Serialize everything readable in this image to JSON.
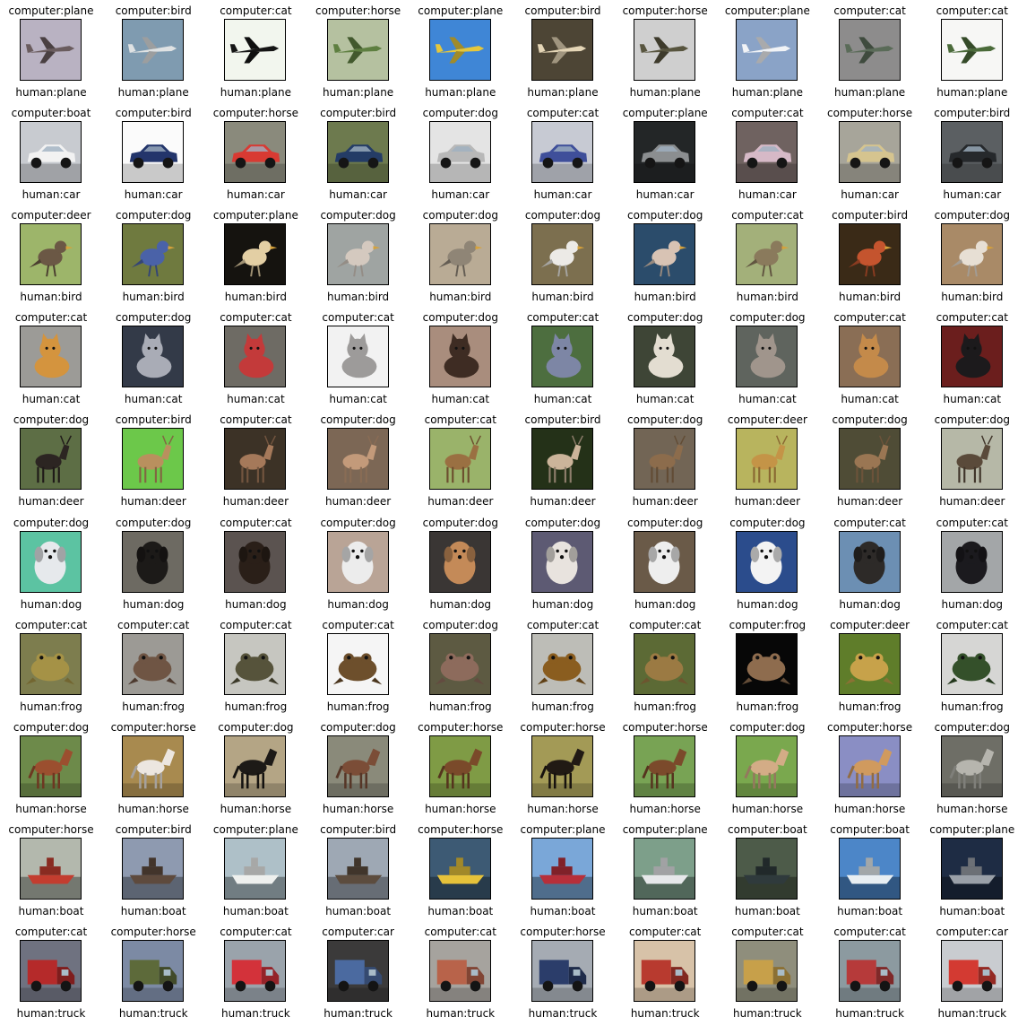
{
  "grid": {
    "rows": [
      {
        "label": "plane",
        "cells": [
          {
            "computer": "computer:plane",
            "human": "human:plane",
            "bg": "#b9b2c2",
            "fg": "#6a5c5e",
            "shape": "plane"
          },
          {
            "computer": "computer:bird",
            "human": "human:plane",
            "bg": "#7f9bb0",
            "fg": "#dfe2e3",
            "shape": "plane"
          },
          {
            "computer": "computer:cat",
            "human": "human:plane",
            "bg": "#f2f6ee",
            "fg": "#151515",
            "shape": "plane"
          },
          {
            "computer": "computer:horse",
            "human": "human:plane",
            "bg": "#b5c1a0",
            "fg": "#5e7f40",
            "shape": "plane"
          },
          {
            "computer": "computer:plane",
            "human": "human:plane",
            "bg": "#3f86d6",
            "fg": "#e5c73c",
            "shape": "plane"
          },
          {
            "computer": "computer:bird",
            "human": "human:plane",
            "bg": "#4d4535",
            "fg": "#e4d5b6",
            "shape": "plane"
          },
          {
            "computer": "computer:horse",
            "human": "human:plane",
            "bg": "#cfcfcf",
            "fg": "#58553f",
            "shape": "plane"
          },
          {
            "computer": "computer:plane",
            "human": "human:plane",
            "bg": "#8aa3c7",
            "fg": "#f1f3f6",
            "shape": "plane"
          },
          {
            "computer": "computer:cat",
            "human": "human:plane",
            "bg": "#8d8c8c",
            "fg": "#5a6b58",
            "shape": "plane"
          },
          {
            "computer": "computer:cat",
            "human": "human:plane",
            "bg": "#f7f7f5",
            "fg": "#4b6b3a",
            "shape": "plane"
          }
        ]
      },
      {
        "label": "car",
        "cells": [
          {
            "computer": "computer:boat",
            "human": "human:car",
            "bg": "#c8cbd0",
            "fg": "#f2f2f2",
            "shape": "car"
          },
          {
            "computer": "computer:bird",
            "human": "human:car",
            "bg": "#fbfbfb",
            "fg": "#23356b",
            "shape": "car"
          },
          {
            "computer": "computer:horse",
            "human": "human:car",
            "bg": "#8a8a7c",
            "fg": "#d83a33",
            "shape": "car"
          },
          {
            "computer": "computer:bird",
            "human": "human:car",
            "bg": "#6d7a4e",
            "fg": "#243c66",
            "shape": "car"
          },
          {
            "computer": "computer:dog",
            "human": "human:car",
            "bg": "#e4e4e4",
            "fg": "#b8b8b8",
            "shape": "car"
          },
          {
            "computer": "computer:cat",
            "human": "human:car",
            "bg": "#c7cad3",
            "fg": "#3f4f9a",
            "shape": "car"
          },
          {
            "computer": "computer:plane",
            "human": "human:car",
            "bg": "#232627",
            "fg": "#8b8e90",
            "shape": "car"
          },
          {
            "computer": "computer:cat",
            "human": "human:car",
            "bg": "#6f6260",
            "fg": "#d6b9c7",
            "shape": "car"
          },
          {
            "computer": "computer:horse",
            "human": "human:car",
            "bg": "#a7a59a",
            "fg": "#d5c48f",
            "shape": "car"
          },
          {
            "computer": "computer:bird",
            "human": "human:car",
            "bg": "#5b5f62",
            "fg": "#26292c",
            "shape": "car"
          }
        ]
      },
      {
        "label": "bird",
        "cells": [
          {
            "computer": "computer:deer",
            "human": "human:bird",
            "bg": "#9db56a",
            "fg": "#6b5845",
            "shape": "bird"
          },
          {
            "computer": "computer:dog",
            "human": "human:bird",
            "bg": "#6f7a3f",
            "fg": "#4a62a8",
            "shape": "bird"
          },
          {
            "computer": "computer:plane",
            "human": "human:bird",
            "bg": "#15130f",
            "fg": "#e3cfa4",
            "shape": "bird"
          },
          {
            "computer": "computer:dog",
            "human": "human:bird",
            "bg": "#9fa4a2",
            "fg": "#d4c9bf",
            "shape": "bird"
          },
          {
            "computer": "computer:dog",
            "human": "human:bird",
            "bg": "#b9ab95",
            "fg": "#8f8576",
            "shape": "bird"
          },
          {
            "computer": "computer:dog",
            "human": "human:bird",
            "bg": "#7c6f4f",
            "fg": "#eceae6",
            "shape": "bird"
          },
          {
            "computer": "computer:dog",
            "human": "human:bird",
            "bg": "#2b4c6b",
            "fg": "#d8c3b4",
            "shape": "bird"
          },
          {
            "computer": "computer:cat",
            "human": "human:bird",
            "bg": "#a3b07a",
            "fg": "#8a7a5c",
            "shape": "bird"
          },
          {
            "computer": "computer:bird",
            "human": "human:bird",
            "bg": "#3a2a17",
            "fg": "#c4542e",
            "shape": "bird"
          },
          {
            "computer": "computer:dog",
            "human": "human:bird",
            "bg": "#a98a67",
            "fg": "#e7dfd4",
            "shape": "bird"
          }
        ]
      },
      {
        "label": "cat",
        "cells": [
          {
            "computer": "computer:cat",
            "human": "human:cat",
            "bg": "#9c9b97",
            "fg": "#d4943e",
            "shape": "cat"
          },
          {
            "computer": "computer:dog",
            "human": "human:cat",
            "bg": "#333a48",
            "fg": "#a9acb6",
            "shape": "cat"
          },
          {
            "computer": "computer:cat",
            "human": "human:cat",
            "bg": "#6e6b64",
            "fg": "#c33a3a",
            "shape": "cat"
          },
          {
            "computer": "computer:cat",
            "human": "human:cat",
            "bg": "#f2f2f2",
            "fg": "#9d9b9a",
            "shape": "cat"
          },
          {
            "computer": "computer:dog",
            "human": "human:cat",
            "bg": "#a98d7d",
            "fg": "#3e2c23",
            "shape": "cat"
          },
          {
            "computer": "computer:cat",
            "human": "human:cat",
            "bg": "#4d6e3f",
            "fg": "#7d86a5",
            "shape": "cat"
          },
          {
            "computer": "computer:dog",
            "human": "human:cat",
            "bg": "#3e4536",
            "fg": "#e3ddd1",
            "shape": "cat"
          },
          {
            "computer": "computer:dog",
            "human": "human:cat",
            "bg": "#5f645e",
            "fg": "#a0958c",
            "shape": "cat"
          },
          {
            "computer": "computer:cat",
            "human": "human:cat",
            "bg": "#8a6e55",
            "fg": "#c48a4a",
            "shape": "cat"
          },
          {
            "computer": "computer:cat",
            "human": "human:cat",
            "bg": "#6b1e1d",
            "fg": "#1c1a1c",
            "shape": "cat"
          }
        ]
      },
      {
        "label": "deer",
        "cells": [
          {
            "computer": "computer:dog",
            "human": "human:deer",
            "bg": "#5d6e45",
            "fg": "#2c2522",
            "shape": "deer"
          },
          {
            "computer": "computer:bird",
            "human": "human:deer",
            "bg": "#6cc84a",
            "fg": "#b9905e",
            "shape": "deer"
          },
          {
            "computer": "computer:cat",
            "human": "human:deer",
            "bg": "#3c3226",
            "fg": "#a5795a",
            "shape": "deer"
          },
          {
            "computer": "computer:dog",
            "human": "human:deer",
            "bg": "#7c6755",
            "fg": "#c39a7a",
            "shape": "deer"
          },
          {
            "computer": "computer:cat",
            "human": "human:deer",
            "bg": "#9ab36a",
            "fg": "#9a7042",
            "shape": "deer"
          },
          {
            "computer": "computer:bird",
            "human": "human:deer",
            "bg": "#243118",
            "fg": "#cbb49a",
            "shape": "deer"
          },
          {
            "computer": "computer:dog",
            "human": "human:deer",
            "bg": "#726555",
            "fg": "#8c6c4c",
            "shape": "deer"
          },
          {
            "computer": "computer:deer",
            "human": "human:deer",
            "bg": "#b8b45e",
            "fg": "#c49447",
            "shape": "deer"
          },
          {
            "computer": "computer:dog",
            "human": "human:deer",
            "bg": "#4f4c36",
            "fg": "#9a7653",
            "shape": "deer"
          },
          {
            "computer": "computer:dog",
            "human": "human:deer",
            "bg": "#b6b8a7",
            "fg": "#5a4a3a",
            "shape": "deer"
          }
        ]
      },
      {
        "label": "dog",
        "cells": [
          {
            "computer": "computer:dog",
            "human": "human:dog",
            "bg": "#5cc3a2",
            "fg": "#e6e9ec",
            "shape": "dog"
          },
          {
            "computer": "computer:dog",
            "human": "human:dog",
            "bg": "#6d6a62",
            "fg": "#1c1a18",
            "shape": "dog"
          },
          {
            "computer": "computer:cat",
            "human": "human:dog",
            "bg": "#5b5350",
            "fg": "#2a1f18",
            "shape": "dog"
          },
          {
            "computer": "computer:dog",
            "human": "human:dog",
            "bg": "#b9a496",
            "fg": "#ececec",
            "shape": "dog"
          },
          {
            "computer": "computer:dog",
            "human": "human:dog",
            "bg": "#3a3634",
            "fg": "#c48a58",
            "shape": "dog"
          },
          {
            "computer": "computer:dog",
            "human": "human:dog",
            "bg": "#5d5a73",
            "fg": "#e8e3de",
            "shape": "dog"
          },
          {
            "computer": "computer:dog",
            "human": "human:dog",
            "bg": "#6a5a48",
            "fg": "#eeeeee",
            "shape": "dog"
          },
          {
            "computer": "computer:dog",
            "human": "human:dog",
            "bg": "#2b4c8c",
            "fg": "#f3f3f3",
            "shape": "dog"
          },
          {
            "computer": "computer:cat",
            "human": "human:dog",
            "bg": "#6c8fb3",
            "fg": "#2d2a28",
            "shape": "dog"
          },
          {
            "computer": "computer:cat",
            "human": "human:dog",
            "bg": "#a3a6a8",
            "fg": "#1b1a1e",
            "shape": "dog"
          }
        ]
      },
      {
        "label": "frog",
        "cells": [
          {
            "computer": "computer:cat",
            "human": "human:frog",
            "bg": "#7d7d4e",
            "fg": "#a59246",
            "shape": "frog"
          },
          {
            "computer": "computer:cat",
            "human": "human:frog",
            "bg": "#9c9a95",
            "fg": "#6f5544",
            "shape": "frog"
          },
          {
            "computer": "computer:cat",
            "human": "human:frog",
            "bg": "#c6c6c0",
            "fg": "#56533b",
            "shape": "frog"
          },
          {
            "computer": "computer:cat",
            "human": "human:frog",
            "bg": "#f5f5f5",
            "fg": "#6d4f2c",
            "shape": "frog"
          },
          {
            "computer": "computer:dog",
            "human": "human:frog",
            "bg": "#5d5a42",
            "fg": "#8d6b5c",
            "shape": "frog"
          },
          {
            "computer": "computer:cat",
            "human": "human:frog",
            "bg": "#bdbdb7",
            "fg": "#8a5d1f",
            "shape": "frog"
          },
          {
            "computer": "computer:cat",
            "human": "human:frog",
            "bg": "#5c6a35",
            "fg": "#9b7a43",
            "shape": "frog"
          },
          {
            "computer": "computer:frog",
            "human": "human:frog",
            "bg": "#070707",
            "fg": "#8e6c4e",
            "shape": "frog"
          },
          {
            "computer": "computer:deer",
            "human": "human:frog",
            "bg": "#5f7d2a",
            "fg": "#c7a24a",
            "shape": "frog"
          },
          {
            "computer": "computer:cat",
            "human": "human:frog",
            "bg": "#d6d6d4",
            "fg": "#34502a",
            "shape": "frog"
          }
        ]
      },
      {
        "label": "horse",
        "cells": [
          {
            "computer": "computer:dog",
            "human": "human:horse",
            "bg": "#6d8a4a",
            "fg": "#9b4f2f",
            "shape": "horse"
          },
          {
            "computer": "computer:horse",
            "human": "human:horse",
            "bg": "#a88a4f",
            "fg": "#ece6e0",
            "shape": "horse"
          },
          {
            "computer": "computer:dog",
            "human": "human:horse",
            "bg": "#b4a585",
            "fg": "#1d1a17",
            "shape": "horse"
          },
          {
            "computer": "computer:dog",
            "human": "human:horse",
            "bg": "#8a8a7a",
            "fg": "#7b4d37",
            "shape": "horse"
          },
          {
            "computer": "computer:horse",
            "human": "human:horse",
            "bg": "#7f9b45",
            "fg": "#7a4a2a",
            "shape": "horse"
          },
          {
            "computer": "computer:horse",
            "human": "human:horse",
            "bg": "#a39a56",
            "fg": "#211a14",
            "shape": "horse"
          },
          {
            "computer": "computer:horse",
            "human": "human:horse",
            "bg": "#78a354",
            "fg": "#7b4a2b",
            "shape": "horse"
          },
          {
            "computer": "computer:dog",
            "human": "human:horse",
            "bg": "#7aa84e",
            "fg": "#d3ac86",
            "shape": "horse"
          },
          {
            "computer": "computer:horse",
            "human": "human:horse",
            "bg": "#8a8ec4",
            "fg": "#d09a5e",
            "shape": "horse"
          },
          {
            "computer": "computer:dog",
            "human": "human:horse",
            "bg": "#6e6e66",
            "fg": "#b6b5ae",
            "shape": "horse"
          }
        ]
      },
      {
        "label": "boat",
        "cells": [
          {
            "computer": "computer:horse",
            "human": "human:boat",
            "bg": "#b3b8ad",
            "fg": "#c33d2f",
            "shape": "boat"
          },
          {
            "computer": "computer:bird",
            "human": "human:boat",
            "bg": "#8e9ab0",
            "fg": "#5e4a3d",
            "shape": "boat"
          },
          {
            "computer": "computer:plane",
            "human": "human:boat",
            "bg": "#aec0c8",
            "fg": "#eef0ee",
            "shape": "boat"
          },
          {
            "computer": "computer:bird",
            "human": "human:boat",
            "bg": "#9ea8b4",
            "fg": "#5c4c3e",
            "shape": "boat"
          },
          {
            "computer": "computer:horse",
            "human": "human:boat",
            "bg": "#3d5a74",
            "fg": "#e6c23a",
            "shape": "boat"
          },
          {
            "computer": "computer:plane",
            "human": "human:boat",
            "bg": "#7aa7d8",
            "fg": "#b72f3a",
            "shape": "boat"
          },
          {
            "computer": "computer:plane",
            "human": "human:boat",
            "bg": "#7d9f8a",
            "fg": "#e6e8ea",
            "shape": "boat"
          },
          {
            "computer": "computer:boat",
            "human": "human:boat",
            "bg": "#4d5b49",
            "fg": "#2f3a3c",
            "shape": "boat"
          },
          {
            "computer": "computer:boat",
            "human": "human:boat",
            "bg": "#4c86c8",
            "fg": "#e8eef2",
            "shape": "boat"
          },
          {
            "computer": "computer:plane",
            "human": "human:boat",
            "bg": "#1e2c44",
            "fg": "#9aa0a8",
            "shape": "boat"
          }
        ]
      },
      {
        "label": "truck",
        "cells": [
          {
            "computer": "computer:cat",
            "human": "human:truck",
            "bg": "#6f7280",
            "fg": "#b52a2a",
            "shape": "truck"
          },
          {
            "computer": "computer:horse",
            "human": "human:truck",
            "bg": "#7c8aa4",
            "fg": "#5d6a3a",
            "shape": "truck"
          },
          {
            "computer": "computer:cat",
            "human": "human:truck",
            "bg": "#9aa3ab",
            "fg": "#d3323a",
            "shape": "truck"
          },
          {
            "computer": "computer:car",
            "human": "human:truck",
            "bg": "#3b3a3a",
            "fg": "#4b6aa0",
            "shape": "truck"
          },
          {
            "computer": "computer:cat",
            "human": "human:truck",
            "bg": "#a6a39e",
            "fg": "#b8634a",
            "shape": "truck"
          },
          {
            "computer": "computer:horse",
            "human": "human:truck",
            "bg": "#a5abb3",
            "fg": "#2b3d6a",
            "shape": "truck"
          },
          {
            "computer": "computer:cat",
            "human": "human:truck",
            "bg": "#d7c2a8",
            "fg": "#b83a2f",
            "shape": "truck"
          },
          {
            "computer": "computer:cat",
            "human": "human:truck",
            "bg": "#8f8e7c",
            "fg": "#c7a04a",
            "shape": "truck"
          },
          {
            "computer": "computer:cat",
            "human": "human:truck",
            "bg": "#8c9aa0",
            "fg": "#b63a3a",
            "shape": "truck"
          },
          {
            "computer": "computer:car",
            "human": "human:truck",
            "bg": "#c9ccd0",
            "fg": "#d33a32",
            "shape": "truck"
          }
        ]
      }
    ]
  }
}
